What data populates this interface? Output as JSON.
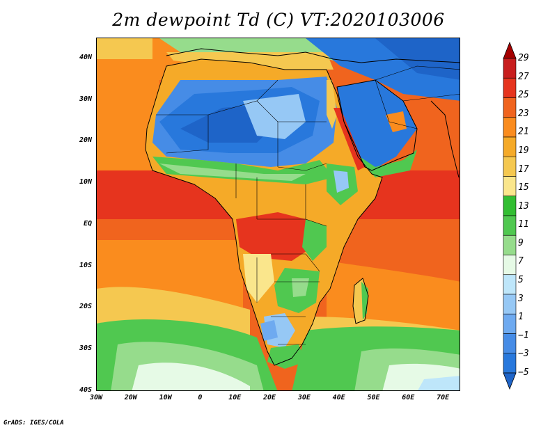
{
  "title": "2m dewpoint Td (C) VT:2020103006",
  "credit": "GrADS: IGES/COLA",
  "map": {
    "lon_range": [
      -30,
      75
    ],
    "lat_range": [
      -40,
      45
    ],
    "lat_ticks": [
      {
        "value": 40,
        "label": "40N"
      },
      {
        "value": 30,
        "label": "30N"
      },
      {
        "value": 20,
        "label": "20N"
      },
      {
        "value": 10,
        "label": "10N"
      },
      {
        "value": 0,
        "label": "EQ"
      },
      {
        "value": -10,
        "label": "10S"
      },
      {
        "value": -20,
        "label": "20S"
      },
      {
        "value": -30,
        "label": "30S"
      },
      {
        "value": -40,
        "label": "40S"
      }
    ],
    "lon_ticks": [
      {
        "value": -30,
        "label": "30W"
      },
      {
        "value": -20,
        "label": "20W"
      },
      {
        "value": -10,
        "label": "10W"
      },
      {
        "value": 0,
        "label": "0"
      },
      {
        "value": 10,
        "label": "10E"
      },
      {
        "value": 20,
        "label": "20E"
      },
      {
        "value": 30,
        "label": "30E"
      },
      {
        "value": 40,
        "label": "40E"
      },
      {
        "value": 50,
        "label": "50E"
      },
      {
        "value": 60,
        "label": "60E"
      },
      {
        "value": 70,
        "label": "70E"
      }
    ]
  },
  "colorbar": {
    "labels": [
      "29",
      "27",
      "25",
      "23",
      "21",
      "19",
      "17",
      "15",
      "13",
      "11",
      "9",
      "7",
      "5",
      "3",
      "1",
      "−1",
      "−3",
      "−5"
    ],
    "colors": [
      "#a50000",
      "#c81e1e",
      "#e6341e",
      "#f0641e",
      "#fa8c1e",
      "#f5aa28",
      "#f5c850",
      "#fae68c",
      "#32be32",
      "#50c850",
      "#96dc8c",
      "#e6fae6",
      "#bee6fa",
      "#96c8f5",
      "#6eaaf0",
      "#468ce6",
      "#2878dc",
      "#1e64c8"
    ]
  }
}
